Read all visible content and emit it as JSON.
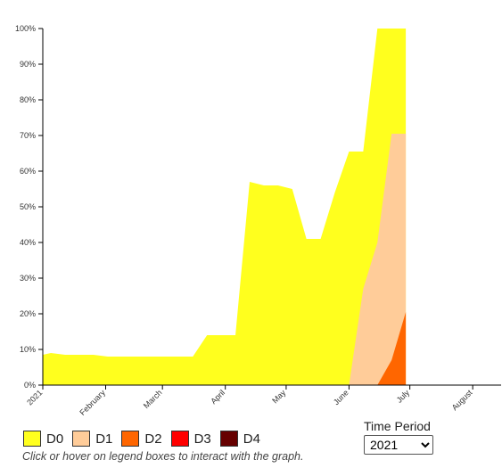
{
  "chart_data": {
    "type": "area",
    "stacked": false,
    "x_axis": {
      "type": "date",
      "range": [
        "2021-01-01",
        "2021-08-15"
      ],
      "ticks": [
        {
          "date": "2021-01-01",
          "label": "2021"
        },
        {
          "date": "2021-02-01",
          "label": "February"
        },
        {
          "date": "2021-03-01",
          "label": "March"
        },
        {
          "date": "2021-04-01",
          "label": "April"
        },
        {
          "date": "2021-05-01",
          "label": "May"
        },
        {
          "date": "2021-06-01",
          "label": "June"
        },
        {
          "date": "2021-07-01",
          "label": "July"
        },
        {
          "date": "2021-08-01",
          "label": "August"
        }
      ]
    },
    "y_axis": {
      "range": [
        0,
        100
      ],
      "ticks": [
        "0%",
        "10%",
        "20%",
        "30%",
        "40%",
        "50%",
        "60%",
        "70%",
        "80%",
        "90%",
        "100%"
      ]
    },
    "series": [
      {
        "name": "D0",
        "color": "#FFFF1E",
        "points": [
          [
            "2021-01-01",
            8.5
          ],
          [
            "2021-01-05",
            9
          ],
          [
            "2021-01-12",
            8.5
          ],
          [
            "2021-01-19",
            8.5
          ],
          [
            "2021-01-26",
            8.5
          ],
          [
            "2021-02-02",
            8
          ],
          [
            "2021-02-09",
            8
          ],
          [
            "2021-02-16",
            8
          ],
          [
            "2021-02-23",
            8
          ],
          [
            "2021-03-02",
            8
          ],
          [
            "2021-03-09",
            8
          ],
          [
            "2021-03-16",
            8
          ],
          [
            "2021-03-23",
            14
          ],
          [
            "2021-03-30",
            14
          ],
          [
            "2021-04-06",
            14
          ],
          [
            "2021-04-13",
            57
          ],
          [
            "2021-04-20",
            56
          ],
          [
            "2021-04-27",
            56
          ],
          [
            "2021-05-04",
            55
          ],
          [
            "2021-05-11",
            41
          ],
          [
            "2021-05-18",
            41
          ],
          [
            "2021-05-25",
            54
          ],
          [
            "2021-06-01",
            65.5
          ],
          [
            "2021-06-08",
            65.5
          ],
          [
            "2021-06-15",
            100
          ],
          [
            "2021-06-22",
            100
          ],
          [
            "2021-06-29",
            100
          ]
        ]
      },
      {
        "name": "D1",
        "color": "#FFCC99",
        "points": [
          [
            "2021-06-01",
            0
          ],
          [
            "2021-06-08",
            27
          ],
          [
            "2021-06-15",
            40
          ],
          [
            "2021-06-22",
            70.5
          ],
          [
            "2021-06-29",
            70.5
          ]
        ]
      },
      {
        "name": "D2",
        "color": "#FF6600",
        "points": [
          [
            "2021-06-15",
            0
          ],
          [
            "2021-06-22",
            7
          ],
          [
            "2021-06-29",
            20.5
          ]
        ]
      },
      {
        "name": "D3",
        "color": "#FF0000",
        "points": []
      },
      {
        "name": "D4",
        "color": "#660000",
        "points": []
      }
    ]
  },
  "legend": {
    "items": [
      {
        "label": "D0",
        "color": "#FFFF1E"
      },
      {
        "label": "D1",
        "color": "#FFCC99"
      },
      {
        "label": "D2",
        "color": "#FF6600"
      },
      {
        "label": "D3",
        "color": "#FF0000"
      },
      {
        "label": "D4",
        "color": "#660000"
      }
    ],
    "hint": "Click or hover on legend boxes to interact with the graph."
  },
  "time_period": {
    "label": "Time Period",
    "selected": "2021"
  }
}
